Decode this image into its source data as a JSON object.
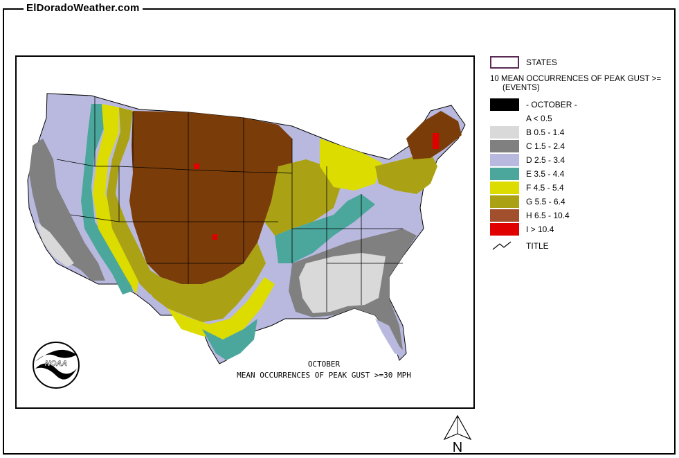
{
  "site": {
    "title": "ElDoradoWeather.com"
  },
  "map": {
    "caption_line1": "OCTOBER",
    "caption_line2": "MEAN OCCURRENCES OF PEAK GUST >=30 MPH",
    "logo_text": "NOAA",
    "north_label": "N"
  },
  "legend": {
    "states_label": "STATES",
    "heading": "10 MEAN OCCURRENCES OF PEAK GUST >=",
    "units": "(EVENTS)",
    "month_label": "- OCTOBER -",
    "classes": [
      {
        "label": "A < 0.5",
        "color": "#ffffff"
      },
      {
        "label": "B 0.5 - 1.4",
        "color": "#d9d9d9"
      },
      {
        "label": "C 1.5 - 2.4",
        "color": "#808080"
      },
      {
        "label": "D 2.5 - 3.4",
        "color": "#b9b9df"
      },
      {
        "label": "E 3.5 - 4.4",
        "color": "#4ba79c"
      },
      {
        "label": "F 4.5 - 5.4",
        "color": "#dcdc00"
      },
      {
        "label": "G 5.5 - 6.4",
        "color": "#aaa214"
      },
      {
        "label": "H 6.5 - 10.4",
        "color": "#a14f2c"
      },
      {
        "label": "I > 10.4",
        "color": "#e00000"
      }
    ],
    "title_label": "TITLE",
    "map_colors": {
      "state_outline": "#5a2a55",
      "month_swatch": "#000000",
      "interior_brown": "#7a3d0a"
    }
  }
}
